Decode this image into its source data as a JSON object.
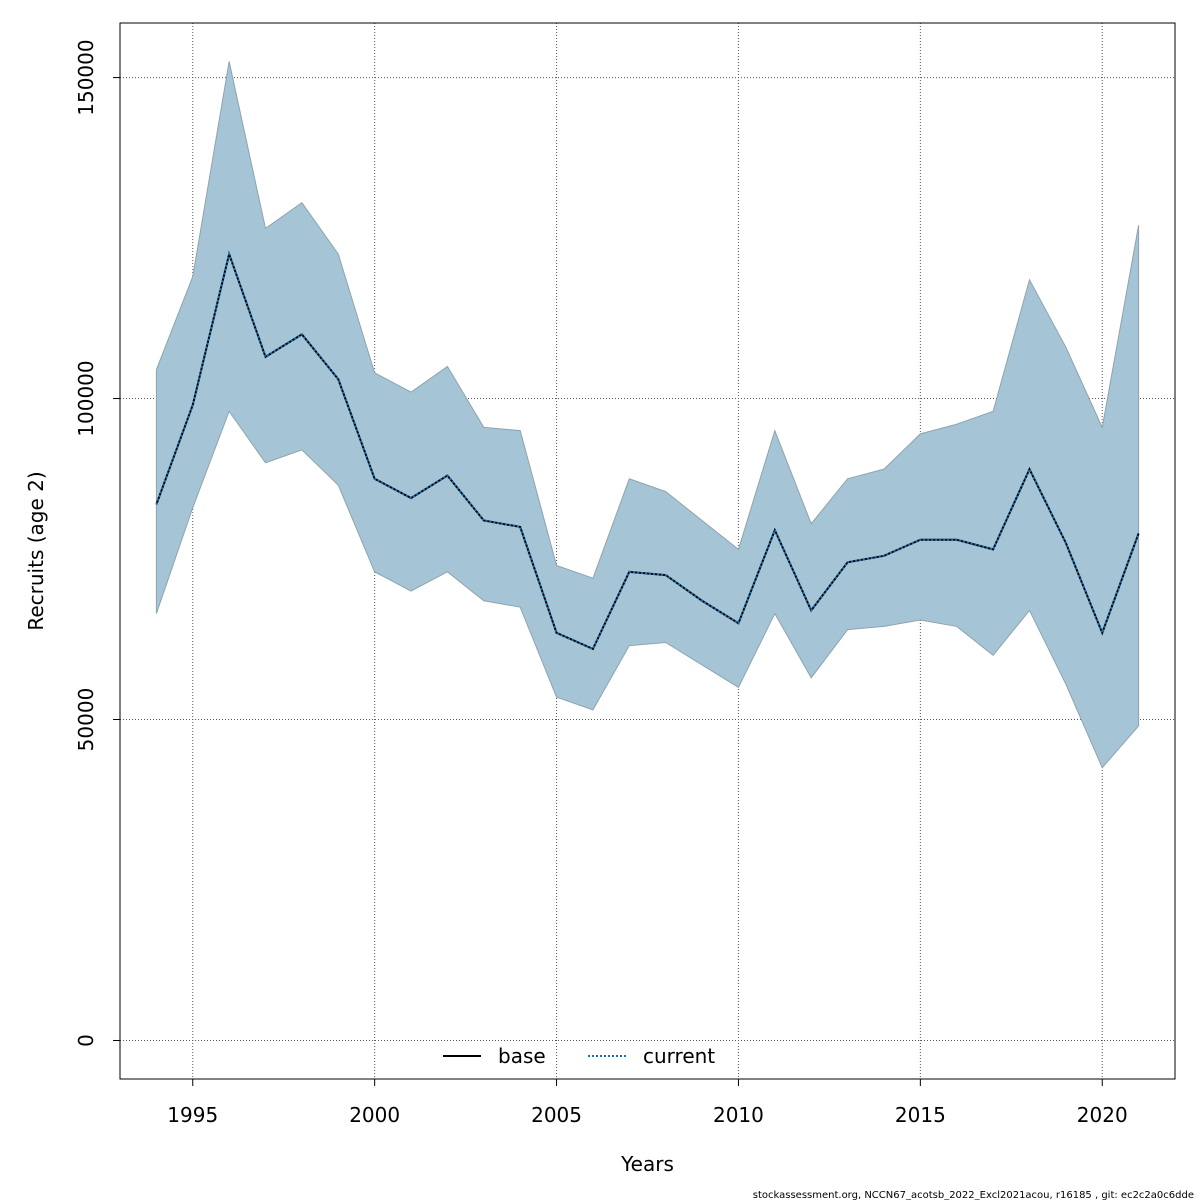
{
  "chart_data": {
    "type": "area",
    "xlabel": "Years",
    "ylabel": "Recruits (age 2)",
    "xlim": [
      1993,
      2022
    ],
    "ylim": [
      -6000,
      158500
    ],
    "x_ticks": [
      1995,
      2000,
      2005,
      2010,
      2015,
      2020
    ],
    "y_ticks": [
      0,
      50000,
      100000,
      150000
    ],
    "grid": true,
    "legend_position": "bottom-center",
    "x": [
      1994,
      1995,
      1996,
      1997,
      1998,
      1999,
      2000,
      2001,
      2002,
      2003,
      2004,
      2005,
      2006,
      2007,
      2008,
      2009,
      2010,
      2011,
      2012,
      2013,
      2014,
      2015,
      2016,
      2017,
      2018,
      2019,
      2020,
      2021
    ],
    "band": {
      "color": "#a5c5d6",
      "upper": [
        104500,
        119000,
        152500,
        126500,
        130500,
        122500,
        104000,
        101000,
        105000,
        95500,
        95000,
        74000,
        72000,
        87500,
        85500,
        81000,
        76500,
        95000,
        80500,
        87500,
        89000,
        94500,
        96000,
        98000,
        118500,
        108000,
        95500,
        127000
      ],
      "lower": [
        66500,
        83000,
        98000,
        90000,
        92000,
        86500,
        73000,
        70000,
        73000,
        68500,
        67500,
        53500,
        51500,
        61500,
        62000,
        58500,
        55000,
        66500,
        56500,
        64000,
        64500,
        65500,
        64500,
        60000,
        67000,
        55500,
        42500,
        49000
      ]
    },
    "series": [
      {
        "name": "base",
        "color": "#000000",
        "style": "solid",
        "values": [
          83500,
          99000,
          122500,
          106500,
          110000,
          103000,
          87500,
          84500,
          88000,
          81000,
          80000,
          63500,
          61000,
          73000,
          72500,
          68500,
          65000,
          79500,
          67000,
          74500,
          75500,
          78000,
          78000,
          76500,
          89000,
          77500,
          63500,
          79000
        ]
      },
      {
        "name": "current",
        "color": "#1a6fb0",
        "style": "dotted",
        "values": [
          83500,
          99000,
          122500,
          106500,
          110000,
          103000,
          87500,
          84500,
          88000,
          81000,
          80000,
          63500,
          61000,
          73000,
          72500,
          68500,
          65000,
          79500,
          67000,
          74500,
          75500,
          78000,
          78000,
          76500,
          89000,
          77500,
          63500,
          79000
        ]
      }
    ],
    "footer": "stockassessment.org, NCCN67_acotsb_2022_Excl2021acou, r16185 , git: ec2c2a0c6dde"
  }
}
